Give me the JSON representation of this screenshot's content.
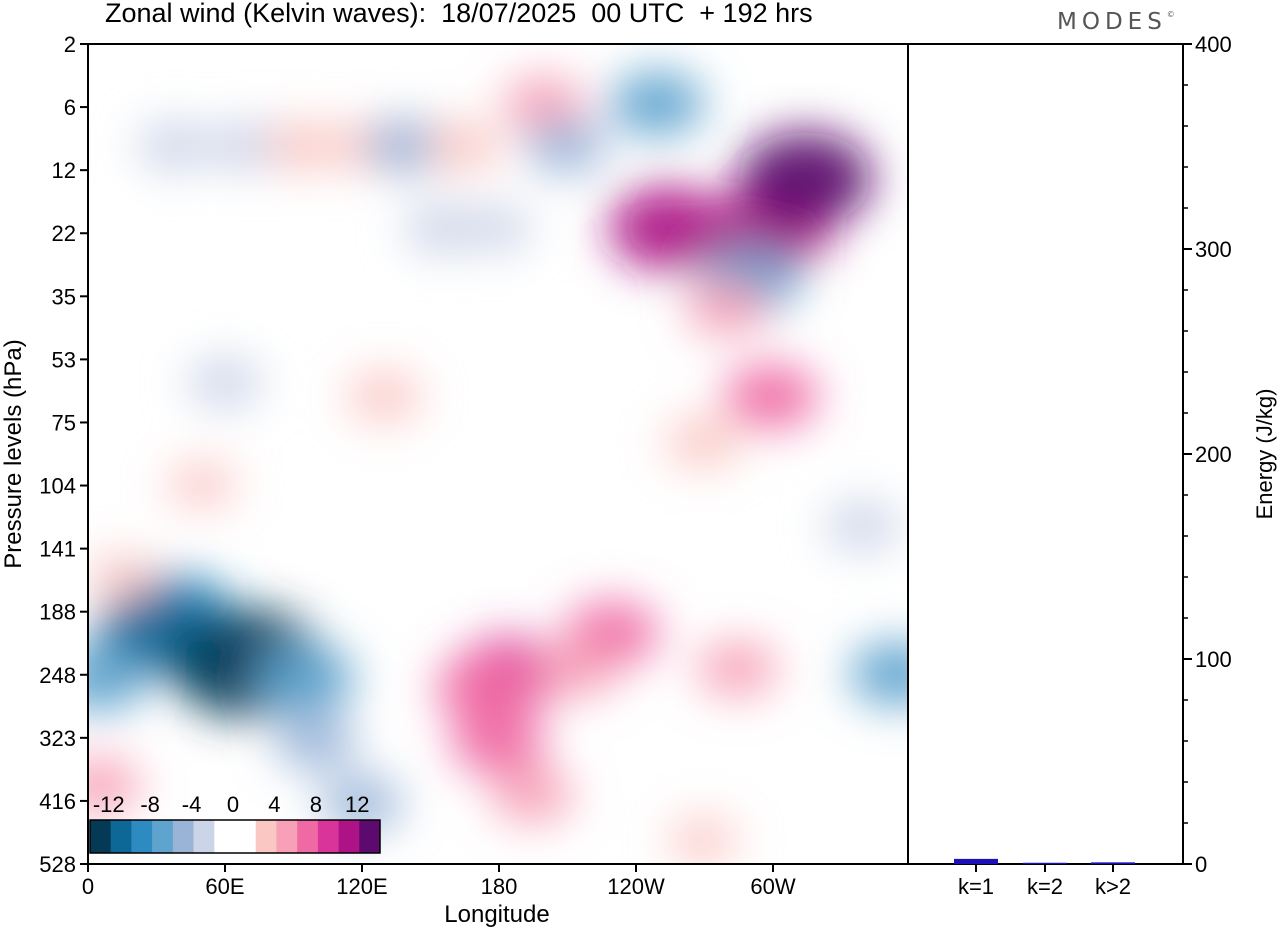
{
  "title": "Zonal wind (Kelvin waves):  18/07/2025  00 UTC  + 192 hrs",
  "logo": "MODES",
  "logo_mark": "©",
  "colors": {
    "neg": [
      "#053a57",
      "#0d6898",
      "#2e8bc2",
      "#5fa3cf",
      "#9ab4d8",
      "#ccd4e8"
    ],
    "zero": "#ffffff",
    "pos": [
      "#fac7c3",
      "#f7a0b7",
      "#ef6aa4",
      "#d8349a",
      "#ad1387",
      "#5c0a6e"
    ],
    "bar": "#1c10b8"
  },
  "chart_data": [
    {
      "type": "heatmap",
      "title": "",
      "xlabel": "Longitude",
      "ylabel": "Pressure levels (hPa)",
      "x_ticks": [
        "0",
        "60E",
        "120E",
        "180",
        "120W",
        "60W"
      ],
      "y_ticks": [
        "2",
        "6",
        "12",
        "22",
        "35",
        "53",
        "75",
        "104",
        "141",
        "188",
        "248",
        "323",
        "416",
        "528"
      ],
      "colorbar": {
        "tick_labels": [
          "-12",
          "-8",
          "-4",
          "0",
          "4",
          "8",
          "12"
        ],
        "levels": [
          -14,
          -12,
          -10,
          -8,
          -6,
          -4,
          -2,
          2,
          4,
          6,
          8,
          10,
          12,
          14
        ]
      },
      "features": [
        {
          "lon": 38,
          "level": 4,
          "value": -3
        },
        {
          "lon": 70,
          "level": 4,
          "value": -3
        },
        {
          "lon": 95,
          "level": 4,
          "value": 3
        },
        {
          "lon": 125,
          "level": 4,
          "value": 3
        },
        {
          "lon": 140,
          "level": 4,
          "value": -4
        },
        {
          "lon": 165,
          "level": 4,
          "value": 3
        },
        {
          "lon": 200,
          "level": 3,
          "value": 4
        },
        {
          "lon": 210,
          "level": 4,
          "value": -4
        },
        {
          "lon": 250,
          "level": 3,
          "value": -6
        },
        {
          "lon": 255,
          "level": 7,
          "value": 10
        },
        {
          "lon": 300,
          "level": 7,
          "value": 10
        },
        {
          "lon": 315,
          "level": 5,
          "value": 12
        },
        {
          "lon": 290,
          "level": 10,
          "value": -7
        },
        {
          "lon": 280,
          "level": 12,
          "value": 4
        },
        {
          "lon": 180,
          "level": 7,
          "value": -2
        },
        {
          "lon": 155,
          "level": 7,
          "value": -3
        },
        {
          "lon": 300,
          "level": 22,
          "value": 6
        },
        {
          "lon": 270,
          "level": 30,
          "value": 3
        },
        {
          "lon": 130,
          "level": 22,
          "value": 3
        },
        {
          "lon": 60,
          "level": 20,
          "value": -3
        },
        {
          "lon": 40,
          "level": 95,
          "value": -8
        },
        {
          "lon": 30,
          "level": 110,
          "value": -10
        },
        {
          "lon": 70,
          "level": 135,
          "value": -15
        },
        {
          "lon": 95,
          "level": 150,
          "value": -7
        },
        {
          "lon": 5,
          "level": 150,
          "value": -6
        },
        {
          "lon": 100,
          "level": 230,
          "value": -4
        },
        {
          "lon": 120,
          "level": 350,
          "value": -4
        },
        {
          "lon": 185,
          "level": 145,
          "value": 8
        },
        {
          "lon": 175,
          "level": 160,
          "value": 7
        },
        {
          "lon": 230,
          "level": 110,
          "value": 6
        },
        {
          "lon": 215,
          "level": 140,
          "value": 4
        },
        {
          "lon": 285,
          "level": 140,
          "value": 4
        },
        {
          "lon": 180,
          "level": 230,
          "value": 6
        },
        {
          "lon": 195,
          "level": 330,
          "value": 4
        },
        {
          "lon": 355,
          "level": 145,
          "value": -6
        },
        {
          "lon": 340,
          "level": 53,
          "value": -3
        },
        {
          "lon": 5,
          "level": 310,
          "value": 4
        },
        {
          "lon": 50,
          "level": 40,
          "value": 2
        },
        {
          "lon": 15,
          "level": 75,
          "value": 2
        },
        {
          "lon": 270,
          "level": 450,
          "value": 2
        }
      ]
    },
    {
      "type": "bar",
      "ylabel": "Energy (J/kg)",
      "categories": [
        "k=1",
        "k=2",
        "k>2"
      ],
      "values": [
        2.5,
        0.6,
        0.8
      ],
      "ylim": [
        0,
        400
      ],
      "y_ticks": [
        "0",
        "100",
        "200",
        "300",
        "400"
      ]
    }
  ]
}
